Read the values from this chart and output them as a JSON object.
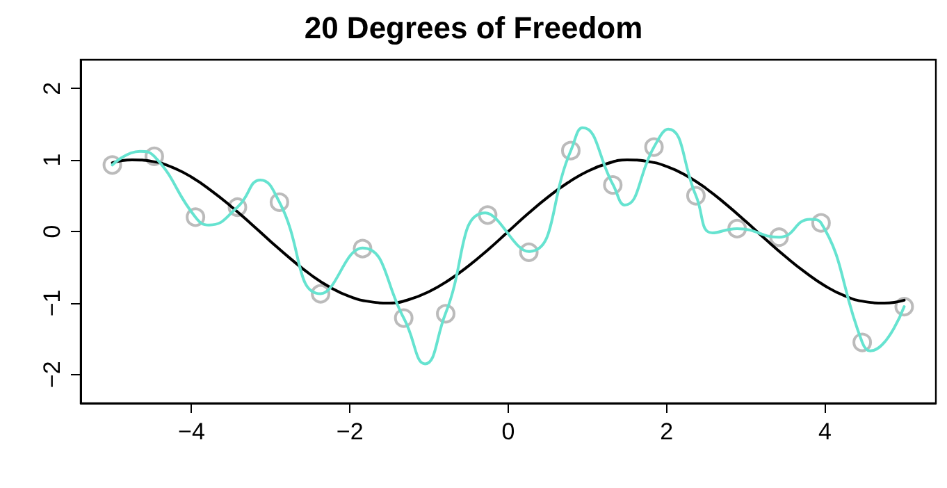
{
  "chart_data": {
    "type": "line",
    "title": "20 Degrees of Freedom",
    "xlim": [
      -5.4,
      5.4
    ],
    "xticks": [
      -4,
      -2,
      0,
      2,
      4
    ],
    "ylim": [
      -2.4,
      2.4
    ],
    "yticks": [
      -2,
      -1,
      0,
      1,
      2
    ],
    "grid": false,
    "marker": "circle",
    "series": [
      {
        "marker": "none",
        "color": "#000000",
        "x": [
          -5,
          -4.75,
          -4.5,
          -4.25,
          -4,
          -3.75,
          -3.5,
          -3.25,
          -3,
          -2.75,
          -2.5,
          -2.25,
          -2,
          -1.75,
          -1.5,
          -1.25,
          -1,
          -0.75,
          -0.5,
          -0.25,
          0,
          0.25,
          0.5,
          0.75,
          1,
          1.25,
          1.5,
          1.75,
          2,
          2.25,
          2.5,
          2.75,
          3,
          3.25,
          3.5,
          3.75,
          4,
          4.25,
          4.5,
          4.75,
          5
        ],
        "values": [
          0.96,
          1.0,
          0.98,
          0.9,
          0.76,
          0.57,
          0.35,
          0.11,
          -0.14,
          -0.38,
          -0.6,
          -0.78,
          -0.91,
          -0.98,
          -1.0,
          -0.95,
          -0.84,
          -0.68,
          -0.48,
          -0.25,
          0,
          0.25,
          0.48,
          0.68,
          0.84,
          0.95,
          1.0,
          0.98,
          0.91,
          0.78,
          0.6,
          0.38,
          0.14,
          -0.11,
          -0.35,
          -0.57,
          -0.76,
          -0.9,
          -0.98,
          -1.0,
          -0.96
        ]
      },
      {
        "marker": "none",
        "color": "#66e3d0",
        "x": [
          -5,
          -4.65,
          -4.47,
          -3.95,
          -3.78,
          -3.42,
          -3.13,
          -2.89,
          -2.37,
          -1.84,
          -1.32,
          -1.05,
          -0.79,
          -0.29,
          0.26,
          0.79,
          0.94,
          1.32,
          1.47,
          1.84,
          2.02,
          2.37,
          2.58,
          2.89,
          3.42,
          3.81,
          3.95,
          4.47,
          4.57,
          5
        ],
        "values": [
          0.93,
          1.12,
          1.05,
          0.2,
          0.09,
          0.34,
          0.72,
          0.41,
          -0.87,
          -0.23,
          -1.21,
          -1.85,
          -1.14,
          0.26,
          -0.28,
          1.13,
          1.45,
          0.66,
          0.37,
          1.18,
          1.43,
          0.5,
          -0.02,
          0.04,
          -0.08,
          0.17,
          0.12,
          -1.55,
          -1.67,
          -1.05
        ]
      },
      {
        "type": "scatter",
        "color": "#aaaaaa",
        "x": [
          -5,
          -4.47,
          -3.95,
          -3.42,
          -2.89,
          -2.37,
          -1.84,
          -1.32,
          -0.79,
          -0.26,
          0.26,
          0.79,
          1.32,
          1.84,
          2.37,
          2.89,
          3.42,
          3.95,
          4.47,
          5
        ],
        "values": [
          0.93,
          1.05,
          0.2,
          0.34,
          0.41,
          -0.87,
          -0.24,
          -1.21,
          -1.15,
          0.23,
          -0.29,
          1.13,
          0.65,
          1.18,
          0.5,
          0.04,
          -0.08,
          0.12,
          -1.55,
          -1.05
        ]
      }
    ]
  }
}
